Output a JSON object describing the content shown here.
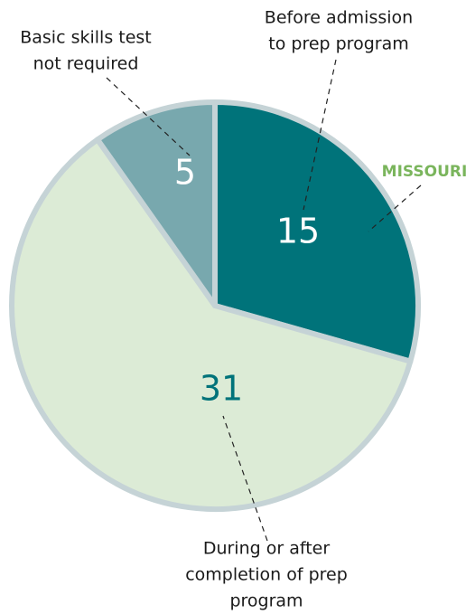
{
  "chart_data": {
    "type": "pie",
    "annotation": "MISSOURI",
    "categories": [
      [
        "Before admission",
        "to prep program"
      ],
      [
        "During or after",
        "completion of prep",
        "program"
      ],
      [
        "Basic skills test",
        "not required"
      ]
    ],
    "values": [
      15,
      31,
      5
    ],
    "colors": [
      "#00737a",
      "#dcebd6",
      "#78a8ae"
    ],
    "value_label_colors": [
      "#ffffff",
      "#00737a",
      "#ffffff"
    ]
  }
}
